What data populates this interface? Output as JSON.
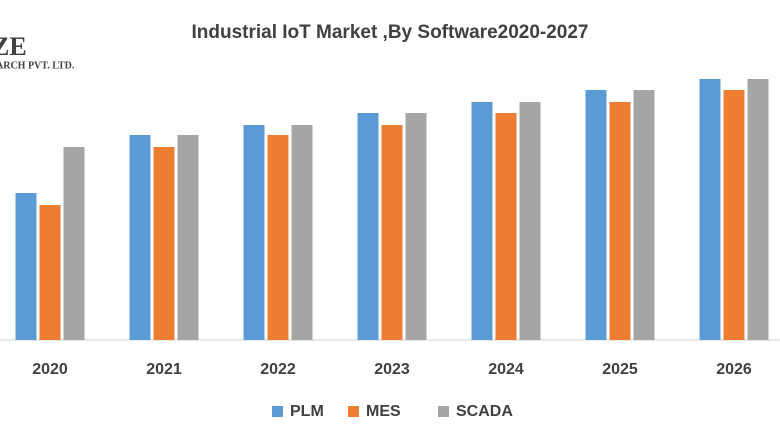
{
  "logo": {
    "name": "ZE",
    "tagline": "ARCH PVT. LTD."
  },
  "chart_data": {
    "type": "bar",
    "title": "Industrial IoT Market ,By Software2020-2027",
    "categories": [
      "2020",
      "2021",
      "2022",
      "2023",
      "2024",
      "2025",
      "2026"
    ],
    "series": [
      {
        "name": "PLM",
        "color": "#5b9bd5",
        "values": [
          147,
          205,
          215,
          227,
          238,
          250,
          261
        ]
      },
      {
        "name": "MES",
        "color": "#ed7d31",
        "values": [
          135,
          193,
          205,
          215,
          227,
          238,
          250
        ]
      },
      {
        "name": "SCADA",
        "color": "#a5a5a5",
        "values": [
          193,
          205,
          215,
          227,
          238,
          250,
          261
        ]
      }
    ],
    "ylim": [
      0,
      280
    ],
    "legend": "bottom"
  }
}
